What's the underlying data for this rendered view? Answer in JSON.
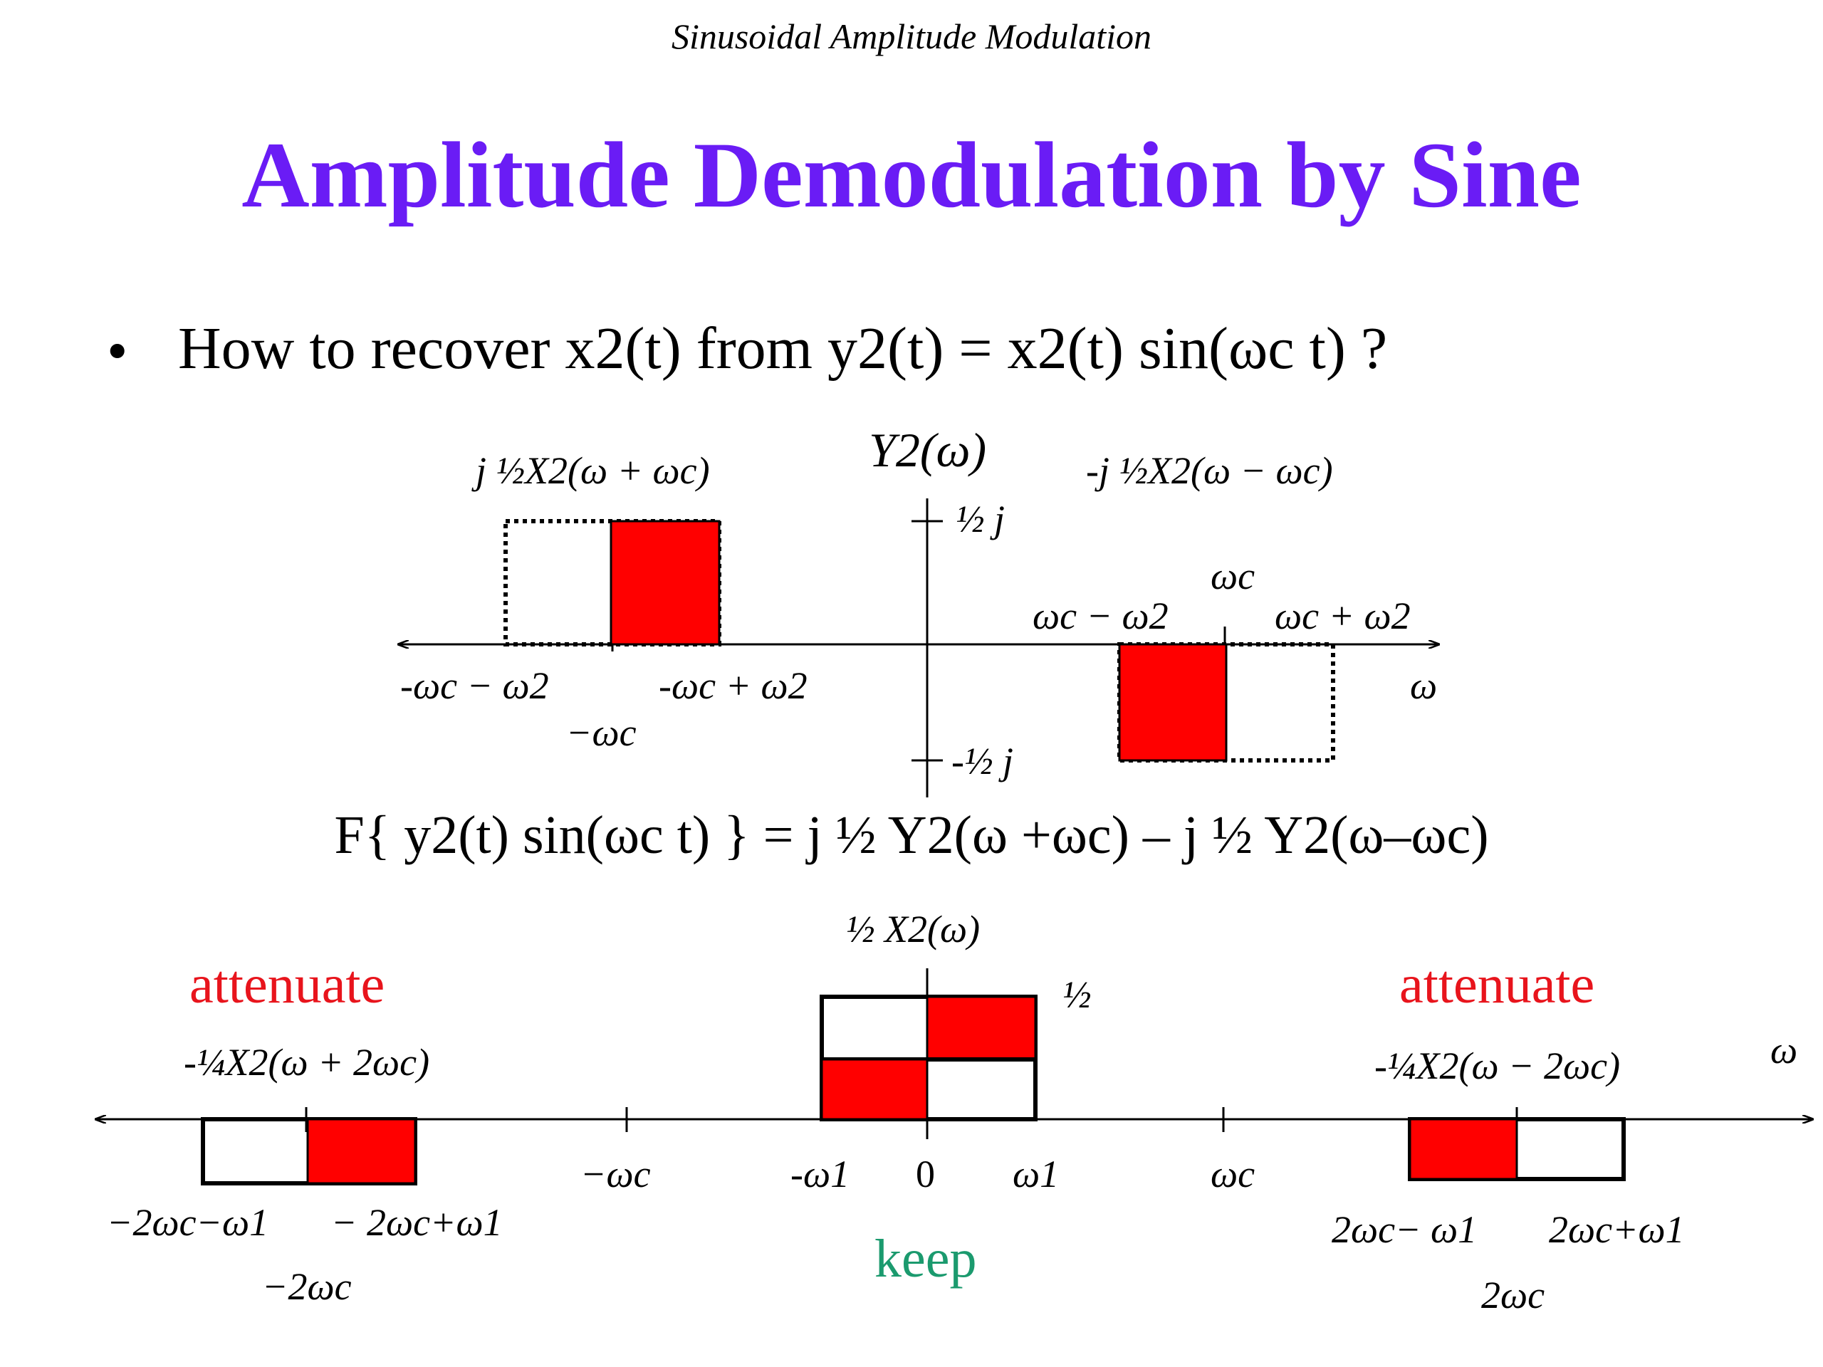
{
  "header": "Sinusoidal Amplitude Modulation",
  "title": "Amplitude Demodulation by Sine",
  "bullet": {
    "symbol": "•",
    "text": "How to recover x2(t) from y2(t) = x2(t) sin(ωc t) ?"
  },
  "top_plot": {
    "ylabel": "Y2(ω)",
    "xlabel": "ω",
    "tick_pos": "½ j",
    "tick_neg": "-½ j",
    "left_label": "j ½X2(ω + ωc)",
    "right_label": "-j ½X2(ω − ωc)",
    "ticks": {
      "neg_wc_minus_w2": "-ωc − ω2",
      "neg_wc_plus_w2": "-ωc + ω2",
      "neg_wc": "−ωc",
      "wc": "ωc",
      "wc_minus_w2": "ωc − ω2",
      "wc_plus_w2": "ωc + ω2"
    }
  },
  "equation": "F{ y2(t) sin(ωc t) } = j ½ Y2(ω +ωc) – j ½ Y2(ω–ωc)",
  "bottom_plot": {
    "center_label": "½ X2(ω)",
    "half": "½",
    "xlabel": "ω",
    "attenuate_left": "attenuate",
    "attenuate_right": "attenuate",
    "keep": "keep",
    "left_label": "-¼X2(ω + 2ωc)",
    "right_label": "-¼X2(ω − 2ωc)",
    "ticks": {
      "neg_2wc_minus_w1": "−2ωc−ω1",
      "neg_2wc_plus_w1": "− 2ωc+ω1",
      "neg_2wc": "−2ωc",
      "neg_wc": "−ωc",
      "neg_w1": "-ω1",
      "zero": "0",
      "w1": "ω1",
      "wc": "ωc",
      "two_wc_minus_w1": "2ωc− ω1",
      "two_wc_plus_w1": "2ωc+ω1",
      "two_wc": "2ωc"
    }
  },
  "colors": {
    "title": "#6a1cf5",
    "fill": "#ff0000",
    "attenuate": "#e8141c",
    "keep": "#1b9a6e"
  }
}
